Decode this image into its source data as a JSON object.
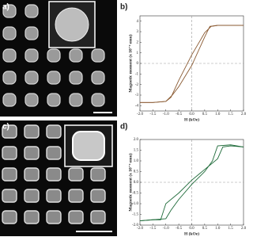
{
  "panel_labels": [
    "a)",
    "b)",
    "c)",
    "d)"
  ],
  "chart_data": [
    {
      "type": "line",
      "xlabel": "H (kOe)",
      "ylabel": "Magnetic moment (x 10⁻⁴ emu)",
      "xlim": [
        -2.0,
        2.0
      ],
      "ylim": [
        -4.5,
        4.5
      ],
      "xticks": [
        {
          "value": -2.0,
          "label": "-2.0"
        },
        {
          "value": -1.5,
          "label": "-1.5"
        },
        {
          "value": -1.0,
          "label": "-1.0"
        },
        {
          "value": -0.5,
          "label": "-0.5"
        },
        {
          "value": 0,
          "label": "0.0"
        },
        {
          "value": 0.5,
          "label": "0.5"
        },
        {
          "value": 1.0,
          "label": "1.0"
        },
        {
          "value": 1.5,
          "label": "1.5"
        },
        {
          "value": 2.0,
          "label": "2.0"
        }
      ],
      "yticks": [
        -4,
        -3,
        -2,
        -1,
        0,
        1,
        2,
        3,
        4
      ],
      "series": [
        {
          "color": "#8a5a32",
          "x": [
            2.0,
            1.5,
            1.0,
            0.75,
            0.5,
            0,
            -0.5,
            -0.8,
            -1.0,
            -1.5,
            -2.0
          ],
          "values": [
            3.6,
            3.6,
            3.6,
            3.5,
            2.9,
            0.8,
            -1.6,
            -3.2,
            -3.6,
            -3.7,
            -3.7
          ]
        },
        {
          "color": "#8a5a32",
          "x": [
            -2.0,
            -1.5,
            -1.0,
            -0.75,
            -0.5,
            0,
            0.5,
            0.7,
            1.0,
            1.5,
            2.0
          ],
          "values": [
            -3.7,
            -3.7,
            -3.6,
            -3.0,
            -2.2,
            -0.2,
            2.5,
            3.5,
            3.6,
            3.6,
            3.6
          ]
        }
      ]
    },
    {
      "type": "line",
      "xlabel": "H (kOe)",
      "ylabel": "Magnetic moment (x 10⁻⁴ emu)",
      "xlim": [
        -2.0,
        2.0
      ],
      "ylim": [
        -2.0,
        2.0
      ],
      "xticks": [
        {
          "value": -2.0,
          "label": "-2.0"
        },
        {
          "value": -1.5,
          "label": "-1.5"
        },
        {
          "value": -1.0,
          "label": "-1.0"
        },
        {
          "value": -0.5,
          "label": "-0.5"
        },
        {
          "value": 0,
          "label": "0.0"
        },
        {
          "value": 0.5,
          "label": "0.5"
        },
        {
          "value": 1.0,
          "label": "1.0"
        },
        {
          "value": 1.5,
          "label": "1.5"
        },
        {
          "value": 2.0,
          "label": "2.0"
        }
      ],
      "yticks": [
        {
          "value": -2.0,
          "label": "-2.0"
        },
        {
          "value": -1.5,
          "label": "-1.5"
        },
        {
          "value": -1.0,
          "label": "-1.0"
        },
        {
          "value": -0.5,
          "label": "-0.5"
        },
        {
          "value": 0,
          "label": "0.0"
        },
        {
          "value": 0.5,
          "label": "0.5"
        },
        {
          "value": 1.0,
          "label": "1.0"
        },
        {
          "value": 1.5,
          "label": "1.5"
        },
        {
          "value": 2.0,
          "label": "2.0"
        }
      ],
      "series": [
        {
          "color": "#1f6b3a",
          "x": [
            2.0,
            1.5,
            1.2,
            1.0,
            0.5,
            0,
            -0.5,
            -1.0,
            -1.2,
            -1.5,
            -2.0
          ],
          "values": [
            1.65,
            1.7,
            1.65,
            1.1,
            0.6,
            0.1,
            -0.5,
            -1.0,
            -1.75,
            -1.75,
            -1.8
          ]
        },
        {
          "color": "#1f6b3a",
          "x": [
            -2.0,
            -1.5,
            -1.0,
            -0.8,
            -0.5,
            0,
            0.5,
            0.8,
            1.0,
            1.5,
            2.0
          ],
          "values": [
            -1.8,
            -1.75,
            -1.7,
            -1.3,
            -0.8,
            -0.1,
            0.5,
            1.0,
            1.7,
            1.75,
            1.65
          ]
        }
      ]
    }
  ]
}
